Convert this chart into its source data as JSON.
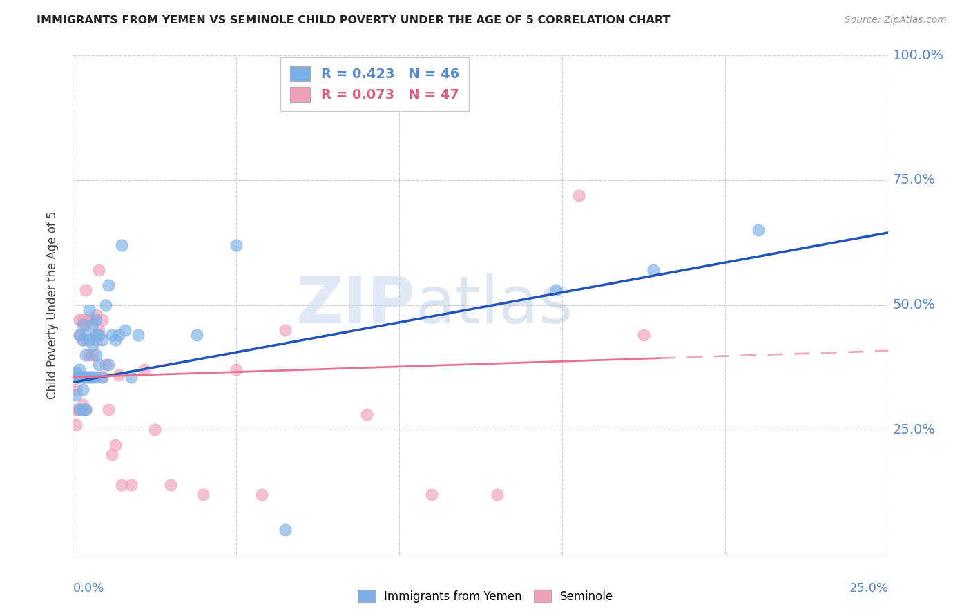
{
  "title": "IMMIGRANTS FROM YEMEN VS SEMINOLE CHILD POVERTY UNDER THE AGE OF 5 CORRELATION CHART",
  "source": "Source: ZipAtlas.com",
  "ylabel": "Child Poverty Under the Age of 5",
  "xmin": 0.0,
  "xmax": 0.25,
  "ymin": 0.0,
  "ymax": 1.0,
  "yticks": [
    0.0,
    0.25,
    0.5,
    0.75,
    1.0
  ],
  "ytick_labels": [
    "",
    "25.0%",
    "50.0%",
    "75.0%",
    "100.0%"
  ],
  "xticks": [
    0.0,
    0.05,
    0.1,
    0.15,
    0.2,
    0.25
  ],
  "legend_blue_label": "R = 0.423   N = 46",
  "legend_pink_label": "R = 0.073   N = 47",
  "blue_color": "#7ab0e8",
  "pink_color": "#f0a0b8",
  "blue_line_color": "#2255bb",
  "pink_line_color": "#e87090",
  "grid_color": "#d0d0e0",
  "axis_label_color": "#5588cc",
  "title_color": "#222222",
  "watermark_zip": "ZIP",
  "watermark_atlas": "atlas",
  "blue_line_x": [
    0.0,
    0.25
  ],
  "blue_line_y": [
    0.345,
    0.645
  ],
  "pink_line_x": [
    0.0,
    0.235
  ],
  "pink_line_y": [
    0.355,
    0.405
  ],
  "blue_scatter_x": [
    0.001,
    0.001,
    0.001,
    0.002,
    0.002,
    0.002,
    0.002,
    0.003,
    0.003,
    0.003,
    0.003,
    0.003,
    0.004,
    0.004,
    0.004,
    0.004,
    0.005,
    0.005,
    0.005,
    0.006,
    0.006,
    0.006,
    0.007,
    0.007,
    0.007,
    0.007,
    0.008,
    0.008,
    0.009,
    0.009,
    0.01,
    0.011,
    0.011,
    0.012,
    0.013,
    0.014,
    0.015,
    0.016,
    0.018,
    0.02,
    0.038,
    0.05,
    0.065,
    0.148,
    0.178,
    0.21
  ],
  "blue_scatter_y": [
    0.355,
    0.365,
    0.32,
    0.44,
    0.37,
    0.355,
    0.29,
    0.43,
    0.46,
    0.355,
    0.33,
    0.29,
    0.44,
    0.4,
    0.355,
    0.29,
    0.49,
    0.43,
    0.355,
    0.46,
    0.42,
    0.355,
    0.47,
    0.44,
    0.4,
    0.355,
    0.44,
    0.38,
    0.43,
    0.355,
    0.5,
    0.54,
    0.38,
    0.44,
    0.43,
    0.44,
    0.62,
    0.45,
    0.355,
    0.44,
    0.44,
    0.62,
    0.05,
    0.53,
    0.57,
    0.65
  ],
  "pink_scatter_x": [
    0.001,
    0.001,
    0.001,
    0.001,
    0.002,
    0.002,
    0.002,
    0.002,
    0.003,
    0.003,
    0.003,
    0.003,
    0.004,
    0.004,
    0.004,
    0.004,
    0.005,
    0.005,
    0.005,
    0.006,
    0.006,
    0.006,
    0.007,
    0.007,
    0.008,
    0.008,
    0.009,
    0.009,
    0.01,
    0.011,
    0.012,
    0.013,
    0.014,
    0.015,
    0.018,
    0.022,
    0.025,
    0.03,
    0.04,
    0.05,
    0.058,
    0.065,
    0.09,
    0.11,
    0.13,
    0.155,
    0.175
  ],
  "pink_scatter_y": [
    0.355,
    0.33,
    0.29,
    0.26,
    0.47,
    0.44,
    0.355,
    0.29,
    0.47,
    0.43,
    0.355,
    0.3,
    0.53,
    0.46,
    0.355,
    0.29,
    0.47,
    0.4,
    0.355,
    0.47,
    0.4,
    0.355,
    0.48,
    0.43,
    0.57,
    0.45,
    0.47,
    0.355,
    0.38,
    0.29,
    0.2,
    0.22,
    0.36,
    0.14,
    0.14,
    0.37,
    0.25,
    0.14,
    0.12,
    0.37,
    0.12,
    0.45,
    0.28,
    0.12,
    0.12,
    0.72,
    0.44
  ]
}
